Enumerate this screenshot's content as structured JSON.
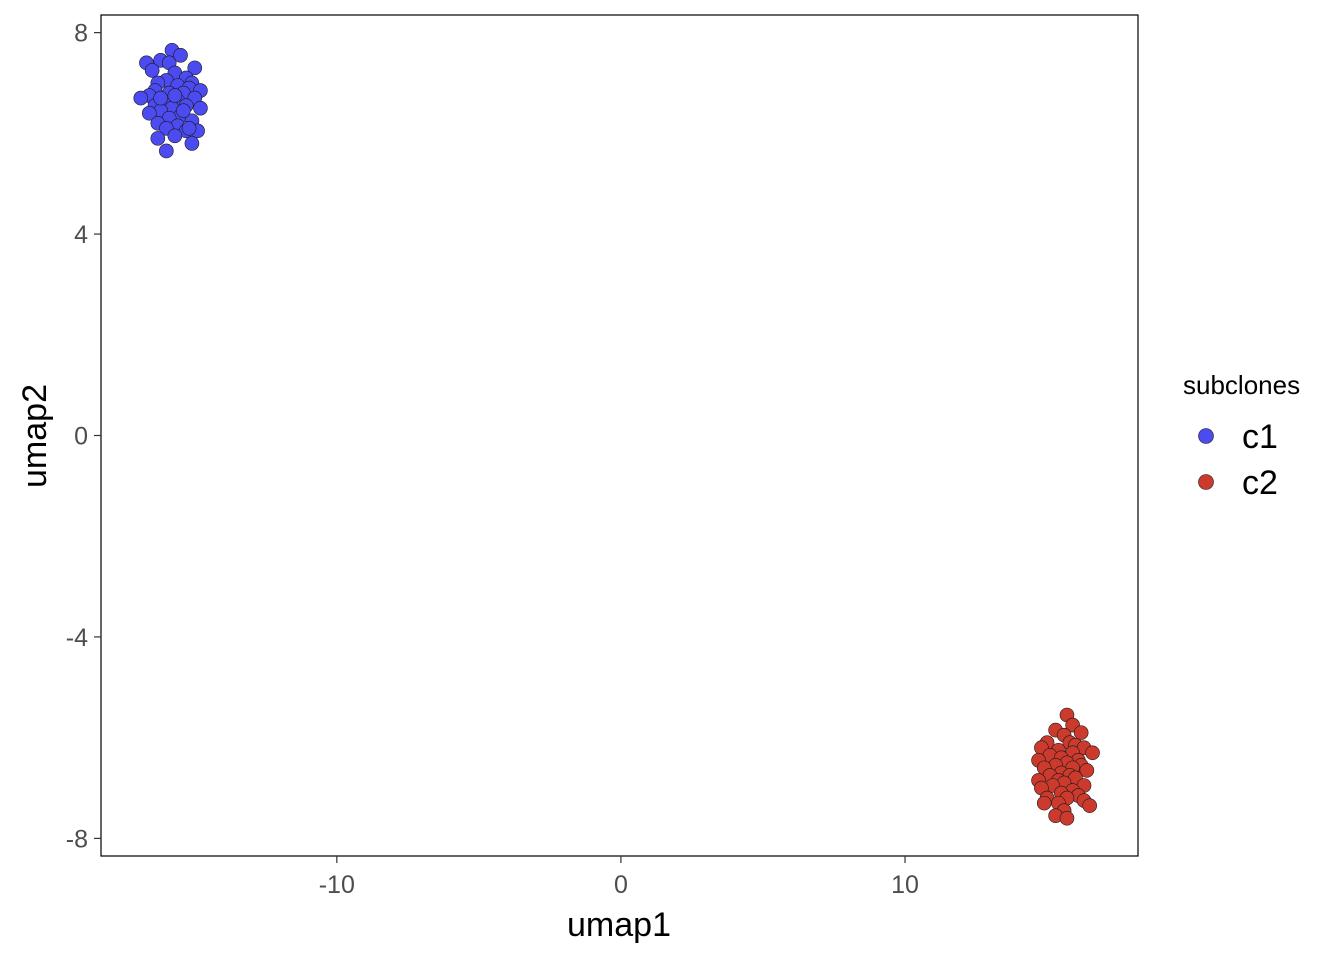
{
  "chart_data": {
    "type": "scatter",
    "title": "",
    "xlabel": "umap1",
    "ylabel": "umap2",
    "xlim": [
      -18.3,
      18.2
    ],
    "ylim": [
      -8.35,
      8.35
    ],
    "x_ticks": [
      -10,
      0,
      10
    ],
    "y_ticks": [
      -8,
      -4,
      0,
      4,
      8
    ],
    "grid": false,
    "legend": {
      "title": "subclones",
      "position": "right"
    },
    "series": [
      {
        "name": "c1",
        "color": "#4B4BF0",
        "points": [
          [
            -15.8,
            7.65
          ],
          [
            -15.5,
            7.55
          ],
          [
            -16.2,
            7.45
          ],
          [
            -15.9,
            7.4
          ],
          [
            -16.7,
            7.4
          ],
          [
            -15.0,
            7.3
          ],
          [
            -16.5,
            7.25
          ],
          [
            -15.7,
            7.2
          ],
          [
            -15.3,
            7.1
          ],
          [
            -16.0,
            7.05
          ],
          [
            -15.1,
            7.0
          ],
          [
            -16.3,
            7.0
          ],
          [
            -15.6,
            6.95
          ],
          [
            -15.2,
            6.9
          ],
          [
            -16.4,
            6.85
          ],
          [
            -14.8,
            6.85
          ],
          [
            -15.9,
            6.8
          ],
          [
            -15.4,
            6.8
          ],
          [
            -16.6,
            6.75
          ],
          [
            -16.9,
            6.7
          ],
          [
            -15.0,
            6.7
          ],
          [
            -15.6,
            6.65
          ],
          [
            -16.1,
            6.6
          ],
          [
            -16.4,
            6.55
          ],
          [
            -15.3,
            6.55
          ],
          [
            -14.8,
            6.5
          ],
          [
            -15.8,
            6.5
          ],
          [
            -16.2,
            6.45
          ],
          [
            -16.6,
            6.4
          ],
          [
            -15.5,
            6.35
          ],
          [
            -15.9,
            6.3
          ],
          [
            -15.1,
            6.25
          ],
          [
            -16.3,
            6.2
          ],
          [
            -15.6,
            6.15
          ],
          [
            -16.0,
            6.1
          ],
          [
            -14.9,
            6.05
          ],
          [
            -15.3,
            6.05
          ],
          [
            -15.7,
            5.95
          ],
          [
            -16.3,
            5.9
          ],
          [
            -15.1,
            5.8
          ],
          [
            -16.0,
            5.65
          ],
          [
            -15.4,
            6.45
          ],
          [
            -15.2,
            6.1
          ],
          [
            -16.2,
            6.7
          ],
          [
            -15.7,
            6.75
          ]
        ]
      },
      {
        "name": "c2",
        "color": "#CC3A2D",
        "points": [
          [
            15.7,
            -5.55
          ],
          [
            15.9,
            -5.75
          ],
          [
            15.3,
            -5.85
          ],
          [
            16.2,
            -5.9
          ],
          [
            15.6,
            -5.95
          ],
          [
            15.0,
            -6.1
          ],
          [
            15.8,
            -6.1
          ],
          [
            16.0,
            -6.15
          ],
          [
            14.8,
            -6.2
          ],
          [
            16.3,
            -6.2
          ],
          [
            15.4,
            -6.25
          ],
          [
            16.6,
            -6.3
          ],
          [
            15.9,
            -6.3
          ],
          [
            15.1,
            -6.35
          ],
          [
            15.5,
            -6.4
          ],
          [
            16.1,
            -6.45
          ],
          [
            14.7,
            -6.45
          ],
          [
            15.7,
            -6.5
          ],
          [
            15.3,
            -6.55
          ],
          [
            16.2,
            -6.55
          ],
          [
            15.9,
            -6.6
          ],
          [
            14.9,
            -6.6
          ],
          [
            16.4,
            -6.65
          ],
          [
            15.5,
            -6.7
          ],
          [
            15.1,
            -6.75
          ],
          [
            15.8,
            -6.75
          ],
          [
            14.7,
            -6.85
          ],
          [
            16.0,
            -6.8
          ],
          [
            15.4,
            -6.85
          ],
          [
            15.6,
            -6.9
          ],
          [
            16.3,
            -6.95
          ],
          [
            15.2,
            -6.95
          ],
          [
            14.8,
            -7.0
          ],
          [
            15.9,
            -7.05
          ],
          [
            15.5,
            -7.1
          ],
          [
            16.1,
            -7.15
          ],
          [
            15.0,
            -7.2
          ],
          [
            15.7,
            -7.2
          ],
          [
            16.3,
            -7.25
          ],
          [
            14.9,
            -7.3
          ],
          [
            15.4,
            -7.3
          ],
          [
            16.5,
            -7.35
          ],
          [
            15.6,
            -7.45
          ],
          [
            15.3,
            -7.55
          ],
          [
            15.7,
            -7.6
          ]
        ]
      }
    ]
  }
}
